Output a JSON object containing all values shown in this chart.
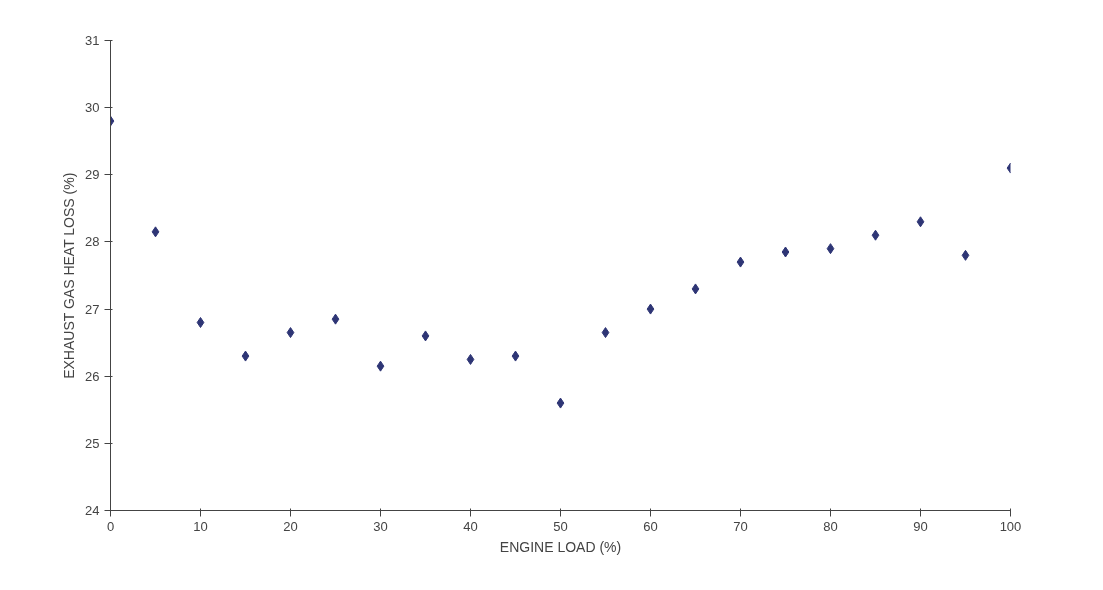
{
  "chart_data": {
    "type": "scatter",
    "xlabel": "ENGINE LOAD (%)",
    "ylabel": "EXHAUST GAS HEAT LOSS (%)",
    "x": [
      0,
      5,
      10,
      15,
      20,
      25,
      30,
      35,
      40,
      45,
      50,
      55,
      60,
      65,
      70,
      75,
      80,
      85,
      90,
      95,
      100
    ],
    "series": [
      {
        "color": "#2e3575",
        "values": [
          29.8,
          28.15,
          26.8,
          26.3,
          26.65,
          26.85,
          26.15,
          26.6,
          26.25,
          26.3,
          25.6,
          26.65,
          27.0,
          27.3,
          27.7,
          27.85,
          27.9,
          28.1,
          28.3,
          27.8,
          29.1
        ]
      }
    ],
    "xlim": [
      0,
      100
    ],
    "xticks": [
      0,
      10,
      20,
      30,
      40,
      50,
      60,
      70,
      80,
      90,
      100
    ],
    "ylim": [
      24,
      31
    ],
    "yticks": [
      24,
      25,
      26,
      27,
      28,
      29,
      30,
      31
    ],
    "grid": false,
    "marker": "diamond"
  }
}
